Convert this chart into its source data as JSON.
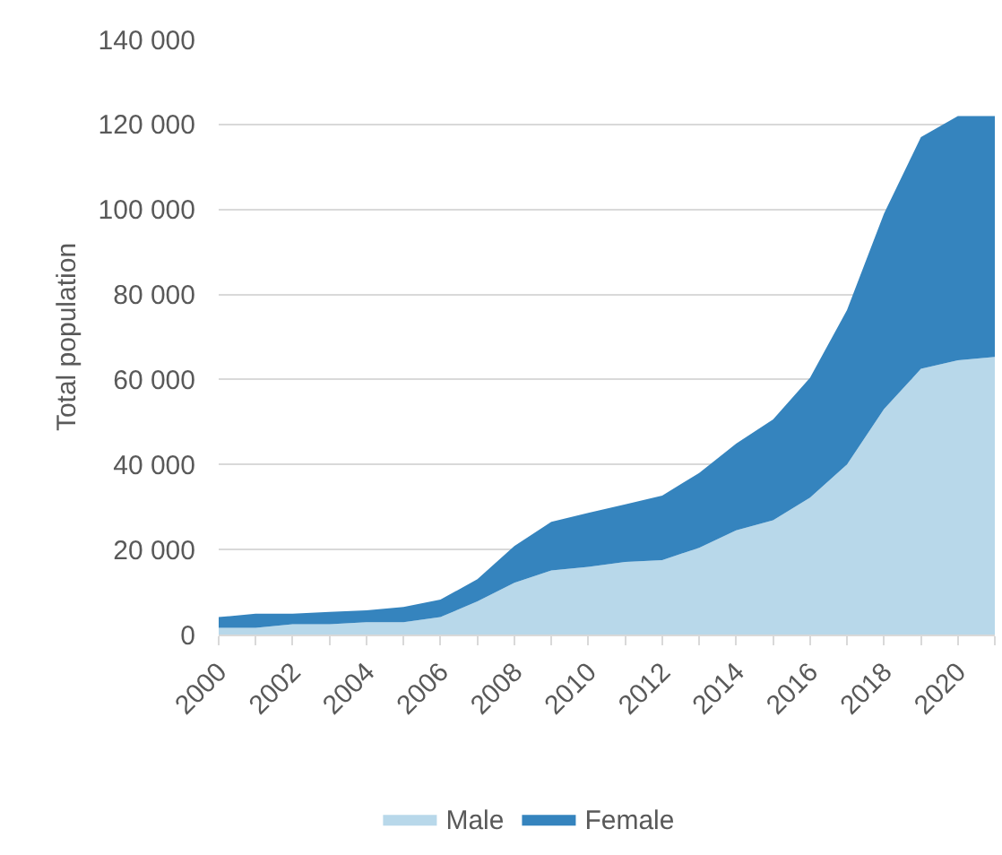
{
  "chart_data": {
    "type": "area",
    "stacked": true,
    "ylabel": "Total population",
    "categories": [
      "2000",
      null,
      "2002",
      null,
      "2004",
      null,
      "2006",
      null,
      "2008",
      null,
      "2010",
      null,
      "2012",
      null,
      "2014",
      null,
      "2016",
      null,
      "2018",
      null,
      "2020",
      null
    ],
    "series": [
      {
        "name": "Male",
        "color": "#b8d8ea",
        "values": [
          1600,
          1600,
          2400,
          2400,
          2900,
          2900,
          4100,
          7800,
          12200,
          15100,
          15900,
          17100,
          17500,
          20400,
          24500,
          26900,
          32200,
          40000,
          53000,
          62500,
          64500,
          65300
        ]
      },
      {
        "name": "Female",
        "color": "#3584be",
        "values": [
          2500,
          3300,
          2500,
          2900,
          2800,
          3600,
          4100,
          5200,
          8600,
          11400,
          12700,
          13500,
          15200,
          17600,
          20400,
          23700,
          28200,
          36300,
          46000,
          54500,
          57500,
          56700
        ]
      }
    ],
    "ylim": [
      0,
      140000
    ],
    "yticks": [
      0,
      {
        "value": 20000,
        "label": "20 000"
      },
      {
        "value": 40000,
        "label": "40 000"
      },
      {
        "value": 60000,
        "label": "60 000"
      },
      {
        "value": 80000,
        "label": "80 000"
      },
      {
        "value": 100000,
        "label": "100 000"
      },
      {
        "value": 120000,
        "label": "120 000"
      },
      {
        "value": 140000,
        "label": "140 000"
      }
    ],
    "grid": "y",
    "legend": "bottom"
  }
}
